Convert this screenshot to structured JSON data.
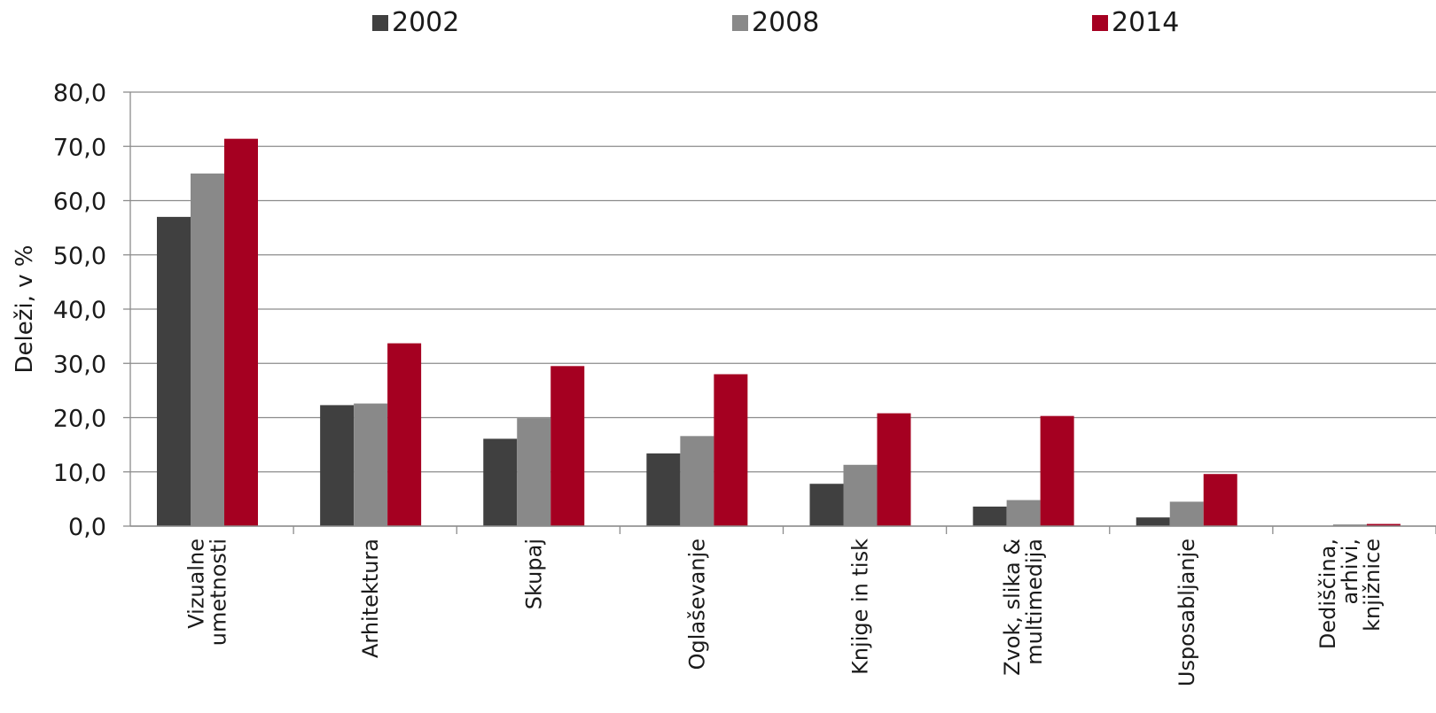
{
  "legend": {
    "s0": "2002",
    "s1": "2008",
    "s2": "2014"
  },
  "colors": {
    "s0": "#404040",
    "s1": "#898989",
    "s2": "#a50021",
    "grid": "#8c8c8c",
    "axis": "#8c8c8c"
  },
  "chart_data": {
    "type": "bar",
    "ylabel": "Deleži, v %",
    "ylim": [
      0,
      80
    ],
    "yticks": [
      "0,0",
      "10,0",
      "20,0",
      "30,0",
      "40,0",
      "50,0",
      "60,0",
      "70,0",
      "80,0"
    ],
    "grid": true,
    "legend_position": "top",
    "categories": [
      [
        "Vizualne",
        "umetnosti"
      ],
      [
        "Arhitektura"
      ],
      [
        "Skupaj"
      ],
      [
        "Oglaševanje"
      ],
      [
        "Knjige in tisk"
      ],
      [
        "Zvok, slika &",
        "multimedija"
      ],
      [
        "Usposabljanje"
      ],
      [
        "Dediščina,",
        "arhivi,",
        "knjižnice"
      ]
    ],
    "series": [
      {
        "name": "2002",
        "values": [
          57.0,
          22.3,
          16.1,
          13.4,
          7.8,
          3.6,
          1.6,
          0.0
        ]
      },
      {
        "name": "2008",
        "values": [
          65.0,
          22.6,
          19.9,
          16.6,
          11.3,
          4.8,
          4.5,
          0.3
        ]
      },
      {
        "name": "2014",
        "values": [
          71.4,
          33.7,
          29.5,
          28.0,
          20.8,
          20.3,
          9.6,
          0.4
        ]
      }
    ]
  }
}
